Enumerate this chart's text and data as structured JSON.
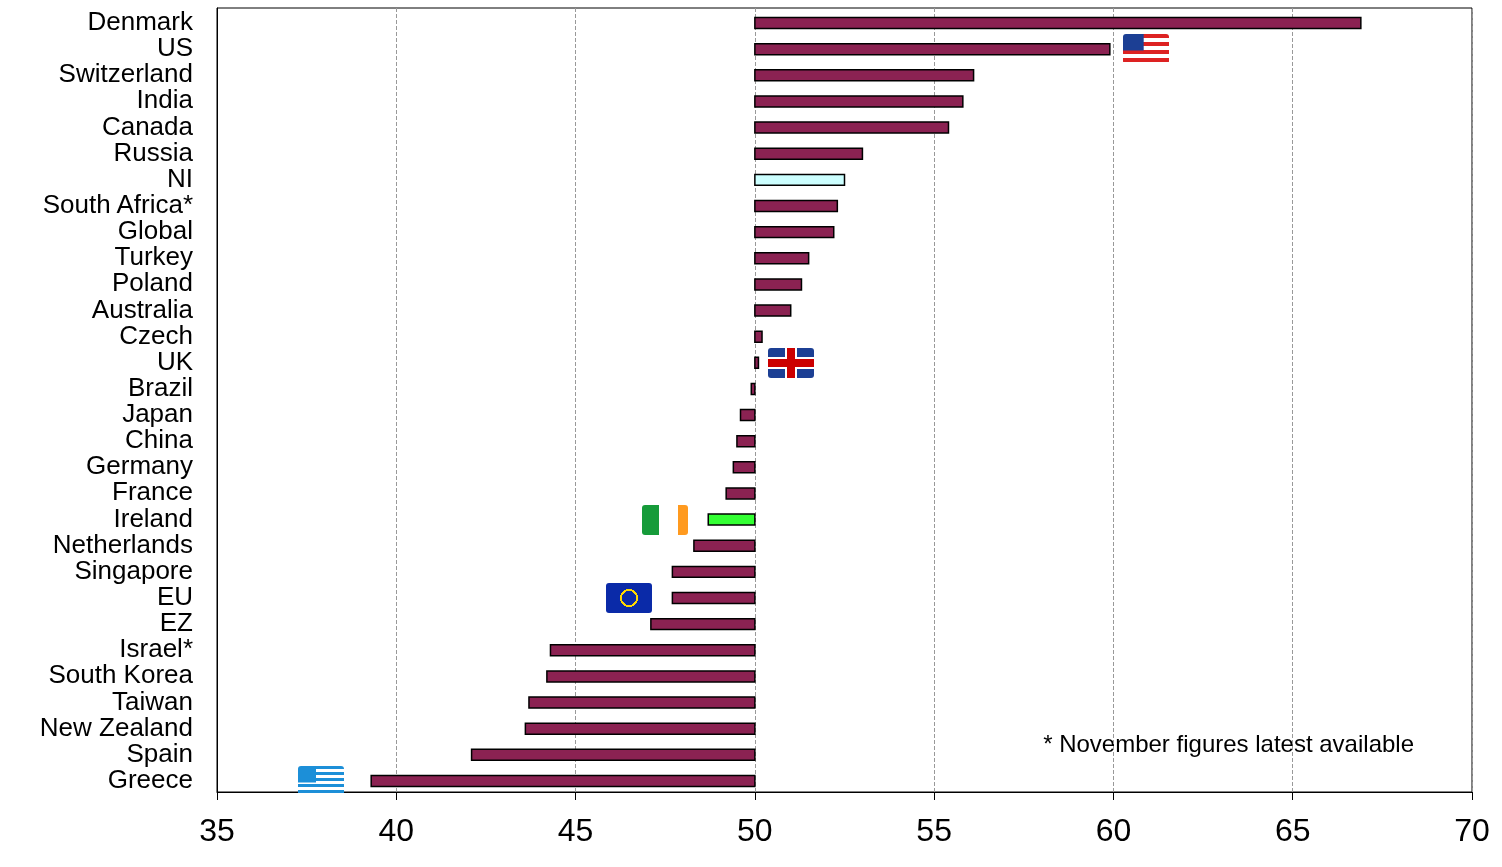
{
  "chart_data": {
    "type": "bar",
    "orientation": "horizontal",
    "categories": [
      "Denmark",
      "US",
      "Switzerland",
      "India",
      "Canada",
      "Russia",
      "NI",
      "South Africa*",
      "Global",
      "Turkey",
      "Poland",
      "Australia",
      "Czech",
      "UK",
      "Brazil",
      "Japan",
      "China",
      "Germany",
      "France",
      "Ireland",
      "Netherlands",
      "Singapore",
      "EU",
      "EZ",
      "Israel*",
      "South Korea",
      "Taiwan",
      "New Zealand",
      "Spain",
      "Greece"
    ],
    "values": [
      16.9,
      9.9,
      6.1,
      5.8,
      5.4,
      3.0,
      2.5,
      2.3,
      2.2,
      1.5,
      1.3,
      1.0,
      0.2,
      0.1,
      -0.1,
      -0.4,
      -0.5,
      -0.6,
      -0.8,
      -1.3,
      -1.7,
      -2.3,
      -2.3,
      -2.9,
      -5.7,
      -5.8,
      -6.3,
      -6.4,
      -7.9,
      -10.7
    ],
    "base": [
      50,
      50,
      50,
      50,
      50,
      50,
      50,
      50,
      50,
      50,
      50,
      50,
      50,
      50,
      50,
      50,
      50,
      50,
      50,
      50,
      50,
      50,
      50,
      50,
      50,
      50,
      50,
      50,
      50,
      50
    ],
    "colors": [
      "#8b2252",
      "#8b2252",
      "#8b2252",
      "#8b2252",
      "#8b2252",
      "#8b2252",
      "#ccffff",
      "#8b2252",
      "#8b2252",
      "#8b2252",
      "#8b2252",
      "#8b2252",
      "#8b2252",
      "#8b2252",
      "#8b2252",
      "#8b2252",
      "#8b2252",
      "#8b2252",
      "#8b2252",
      "#33ff33",
      "#8b2252",
      "#8b2252",
      "#8b2252",
      "#8b2252",
      "#8b2252",
      "#8b2252",
      "#8b2252",
      "#8b2252",
      "#8b2252",
      "#8b2252"
    ],
    "xlim": [
      35,
      70
    ],
    "xticks": [
      35,
      40,
      45,
      50,
      55,
      60,
      65,
      70
    ],
    "grid": "x",
    "annotations": [
      "* November figures latest available"
    ]
  }
}
